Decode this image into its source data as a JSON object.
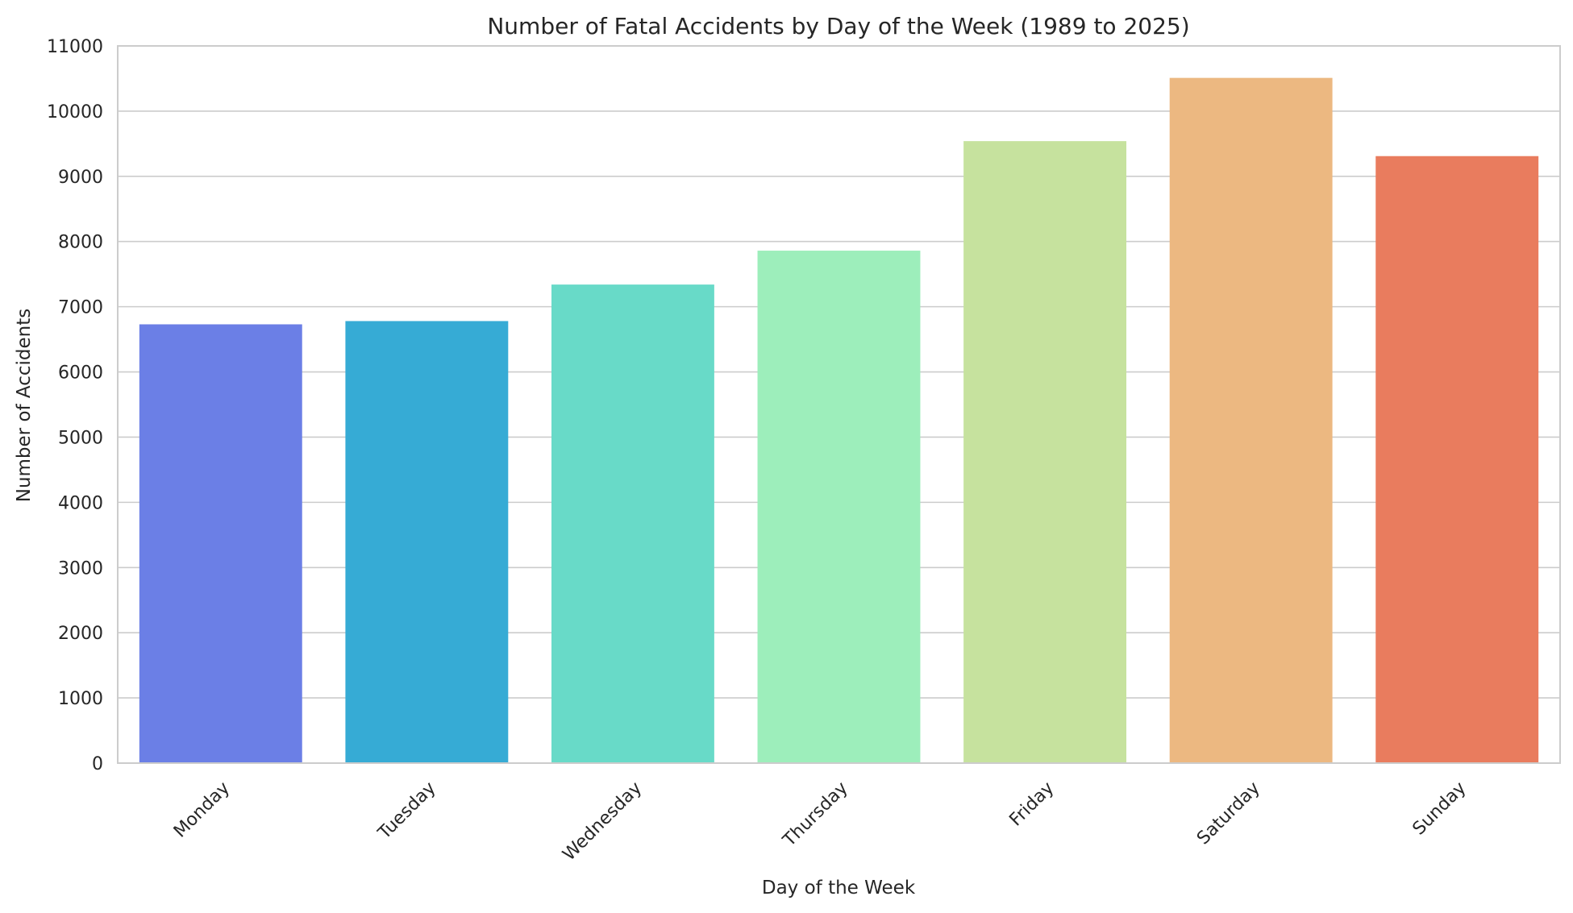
{
  "chart_data": {
    "type": "bar",
    "title": "Number of Fatal Accidents by Day of the Week (1989 to 2025)",
    "xlabel": "Day of the Week",
    "ylabel": "Number of Accidents",
    "categories": [
      "Monday",
      "Tuesday",
      "Wednesday",
      "Thursday",
      "Friday",
      "Saturday",
      "Sunday"
    ],
    "values": [
      6730,
      6780,
      7340,
      7860,
      9540,
      10510,
      9310
    ],
    "colors": [
      "#6b7fe6",
      "#36abd5",
      "#68dac8",
      "#9deebb",
      "#c6e29e",
      "#ecb881",
      "#e97c5e"
    ],
    "ylim": [
      0,
      11000
    ],
    "yticks": [
      0,
      1000,
      2000,
      3000,
      4000,
      5000,
      6000,
      7000,
      8000,
      9000,
      10000,
      11000
    ],
    "grid": "y",
    "legend": "none"
  }
}
